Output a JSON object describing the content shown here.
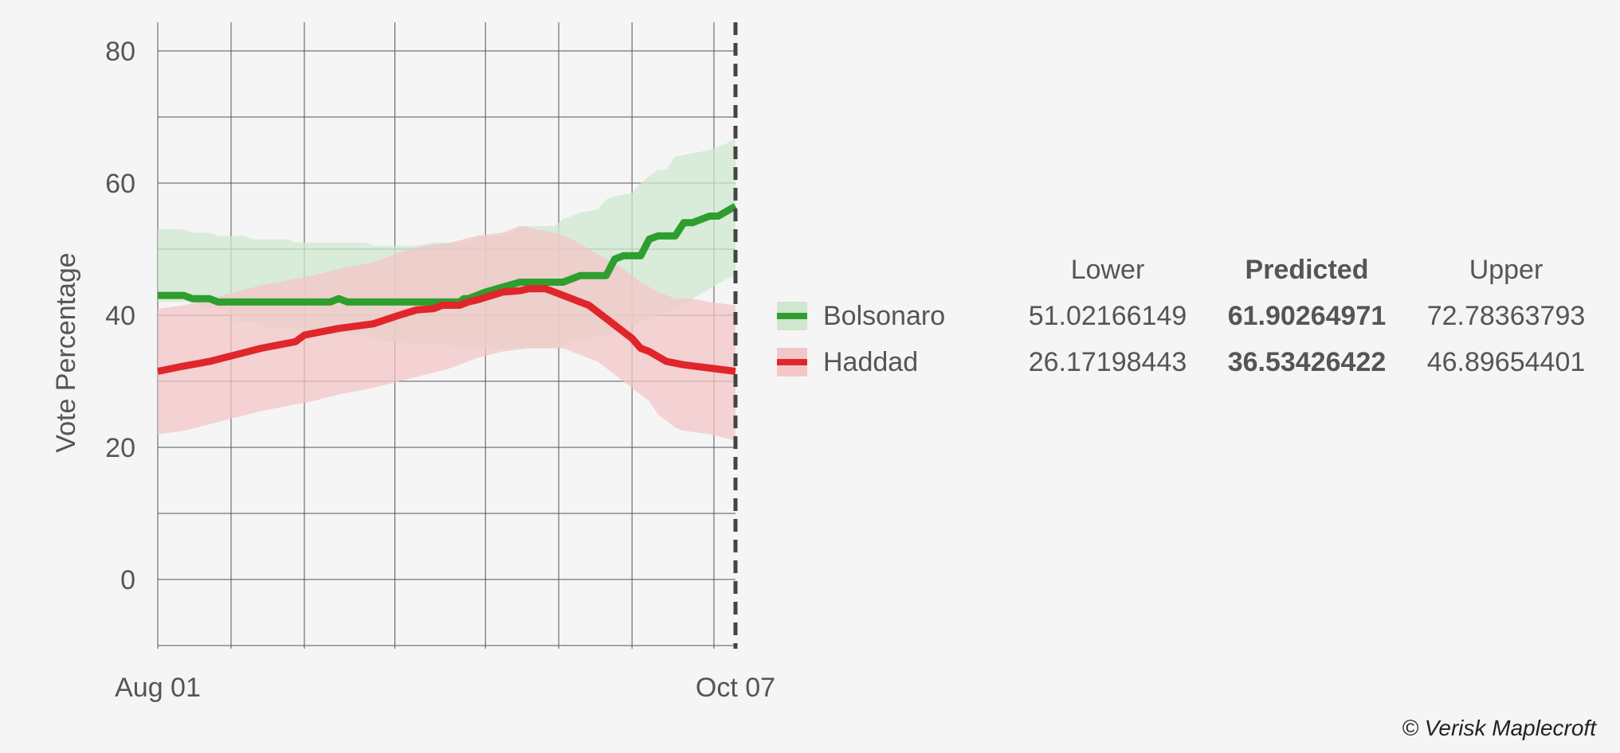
{
  "chart_data": {
    "type": "line",
    "ylabel": "Vote Percentage",
    "xlabel": "",
    "ylim": [
      -10,
      85
    ],
    "xlim": [
      0,
      67
    ],
    "y_ticks": [
      0,
      20,
      40,
      60,
      80
    ],
    "x_tick_labels": [
      {
        "x": 0,
        "label": "Aug 01"
      },
      {
        "x": 67,
        "label": "Oct 07"
      }
    ],
    "grid": true,
    "vertical_grid_x": [
      0,
      8.5,
      17,
      27.5,
      38,
      46.5,
      55,
      64.5
    ],
    "cutoff_x": 67,
    "legend_position": "right",
    "series": [
      {
        "name": "Bolsonaro",
        "color": "#2e9e2e",
        "band_color": "#cfe7cf",
        "points": [
          [
            0,
            43
          ],
          [
            3,
            43
          ],
          [
            4,
            42.5
          ],
          [
            6,
            42.5
          ],
          [
            7,
            42
          ],
          [
            20,
            42
          ],
          [
            21,
            42.5
          ],
          [
            22,
            42
          ],
          [
            35,
            42
          ],
          [
            35.5,
            42.5
          ],
          [
            36,
            42.5
          ],
          [
            38,
            43.5
          ],
          [
            42,
            45
          ],
          [
            47,
            45
          ],
          [
            49,
            46
          ],
          [
            52,
            46
          ],
          [
            53,
            48.5
          ],
          [
            54,
            49
          ],
          [
            56,
            49
          ],
          [
            57,
            51.5
          ],
          [
            58,
            52
          ],
          [
            60,
            52
          ],
          [
            61,
            54
          ],
          [
            62,
            54
          ],
          [
            64,
            55
          ],
          [
            65,
            55
          ],
          [
            67,
            56.5
          ]
        ],
        "lower": [
          [
            0,
            42
          ],
          [
            4,
            42
          ],
          [
            6,
            41
          ],
          [
            8,
            41
          ],
          [
            9,
            39
          ],
          [
            12,
            39
          ],
          [
            13,
            38
          ],
          [
            16,
            38
          ],
          [
            18,
            37
          ],
          [
            24,
            37
          ],
          [
            26,
            36
          ],
          [
            28,
            36
          ],
          [
            30,
            35.5
          ],
          [
            34,
            35.5
          ],
          [
            36,
            35
          ],
          [
            40,
            35
          ],
          [
            42,
            35
          ],
          [
            46,
            35
          ],
          [
            48,
            36
          ],
          [
            52,
            37
          ],
          [
            54,
            38
          ],
          [
            56,
            39
          ],
          [
            58,
            40
          ],
          [
            60,
            41
          ],
          [
            62,
            42.5
          ],
          [
            64,
            44
          ],
          [
            66,
            45.5
          ],
          [
            67,
            46
          ]
        ],
        "upper": [
          [
            0,
            53
          ],
          [
            3,
            53
          ],
          [
            4,
            52.5
          ],
          [
            6,
            52.5
          ],
          [
            7,
            52
          ],
          [
            10,
            52
          ],
          [
            11,
            51.5
          ],
          [
            15,
            51.5
          ],
          [
            16,
            51
          ],
          [
            24,
            51
          ],
          [
            25,
            50.5
          ],
          [
            30,
            50.5
          ],
          [
            32,
            51
          ],
          [
            36,
            51
          ],
          [
            37,
            52
          ],
          [
            40,
            52
          ],
          [
            41,
            52.5
          ],
          [
            42,
            53.5
          ],
          [
            46,
            53.5
          ],
          [
            47,
            54.5
          ],
          [
            49,
            55.5
          ],
          [
            51,
            56
          ],
          [
            52,
            57.5
          ],
          [
            53,
            58
          ],
          [
            55,
            58.5
          ],
          [
            56,
            60
          ],
          [
            57,
            61
          ],
          [
            58,
            62
          ],
          [
            59,
            62
          ],
          [
            60,
            64
          ],
          [
            62,
            64.5
          ],
          [
            64,
            65
          ],
          [
            66,
            66
          ],
          [
            67,
            67
          ]
        ]
      },
      {
        "name": "Haddad",
        "color": "#e0262b",
        "band_color": "#f3c6c7",
        "points": [
          [
            0,
            31.5
          ],
          [
            3,
            32.3
          ],
          [
            6,
            33
          ],
          [
            9,
            34
          ],
          [
            12,
            35
          ],
          [
            16,
            36
          ],
          [
            17,
            37
          ],
          [
            21,
            38
          ],
          [
            25,
            38.7
          ],
          [
            28,
            40
          ],
          [
            30,
            40.8
          ],
          [
            32,
            41
          ],
          [
            33,
            41.5
          ],
          [
            35,
            41.5
          ],
          [
            36,
            42
          ],
          [
            37,
            42.3
          ],
          [
            38,
            42.7
          ],
          [
            40,
            43.5
          ],
          [
            42,
            43.7
          ],
          [
            43,
            44
          ],
          [
            45,
            44
          ],
          [
            46,
            43.5
          ],
          [
            47,
            43
          ],
          [
            48,
            42.5
          ],
          [
            49,
            42
          ],
          [
            50,
            41.5
          ],
          [
            51,
            40.5
          ],
          [
            52,
            39.5
          ],
          [
            53,
            38.5
          ],
          [
            54,
            37.5
          ],
          [
            55,
            36.5
          ],
          [
            56,
            35
          ],
          [
            57,
            34.5
          ],
          [
            59,
            33
          ],
          [
            61,
            32.5
          ],
          [
            64,
            32
          ],
          [
            67,
            31.5
          ]
        ],
        "lower": [
          [
            0,
            22
          ],
          [
            3,
            22.5
          ],
          [
            6,
            23.5
          ],
          [
            9,
            24.5
          ],
          [
            12,
            25.5
          ],
          [
            16,
            26.5
          ],
          [
            18,
            27
          ],
          [
            21,
            28
          ],
          [
            25,
            29
          ],
          [
            28,
            30
          ],
          [
            31,
            31
          ],
          [
            34,
            32
          ],
          [
            37,
            33.5
          ],
          [
            40,
            34.5
          ],
          [
            43,
            35
          ],
          [
            47,
            35
          ],
          [
            49,
            34
          ],
          [
            51,
            33
          ],
          [
            53,
            31
          ],
          [
            55,
            29
          ],
          [
            57,
            27
          ],
          [
            58,
            25
          ],
          [
            59,
            24
          ],
          [
            60,
            23
          ],
          [
            61,
            22.5
          ],
          [
            64,
            22
          ],
          [
            67,
            21
          ]
        ],
        "upper": [
          [
            0,
            41
          ],
          [
            3,
            41.5
          ],
          [
            6,
            42.5
          ],
          [
            9,
            43.5
          ],
          [
            12,
            44.5
          ],
          [
            16,
            45.5
          ],
          [
            18,
            46
          ],
          [
            21,
            47
          ],
          [
            25,
            48
          ],
          [
            28,
            49.5
          ],
          [
            31,
            50.5
          ],
          [
            34,
            51
          ],
          [
            37,
            52
          ],
          [
            40,
            52.5
          ],
          [
            42,
            53.5
          ],
          [
            44,
            53
          ],
          [
            46,
            52.5
          ],
          [
            48,
            51.5
          ],
          [
            50,
            50
          ],
          [
            52,
            48.5
          ],
          [
            54,
            47
          ],
          [
            56,
            45
          ],
          [
            58,
            43.5
          ],
          [
            59,
            43
          ],
          [
            60,
            42.5
          ],
          [
            62,
            42.5
          ],
          [
            64,
            42
          ],
          [
            67,
            41.5
          ]
        ]
      }
    ]
  },
  "legend": [
    {
      "label": "Bolsonaro",
      "color": "#2e9e2e",
      "band_color": "#cfe7cf"
    },
    {
      "label": "Haddad",
      "color": "#e0262b",
      "band_color": "#f3c6c7"
    }
  ],
  "results_table": {
    "headers": {
      "lower": "Lower",
      "predicted": "Predicted",
      "upper": "Upper"
    },
    "rows": [
      {
        "name": "Bolsonaro",
        "lower": "51.02166149",
        "predicted": "61.90264971",
        "upper": "72.78363793"
      },
      {
        "name": "Haddad",
        "lower": "26.17198443",
        "predicted": "36.53426422",
        "upper": "46.89654401"
      }
    ]
  },
  "credit": "© Verisk Maplecroft"
}
